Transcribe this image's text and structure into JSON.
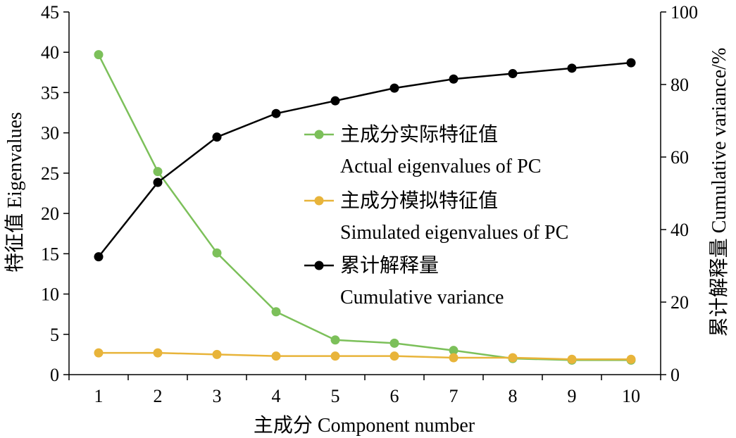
{
  "chart_data": {
    "type": "line",
    "x": [
      1,
      2,
      3,
      4,
      5,
      6,
      7,
      8,
      9,
      10
    ],
    "xlim": [
      0.5,
      10.5
    ],
    "xticks": [
      "1",
      "2",
      "3",
      "4",
      "5",
      "6",
      "7",
      "8",
      "9",
      "10"
    ],
    "xlabel": "主成分 Component  number",
    "ylabel_left": "特征值 Eigenvalues",
    "ylabel_right": "累计解释量 Cumulative variance/%",
    "ylim_left": [
      0,
      45
    ],
    "ylim_right": [
      0,
      100
    ],
    "yticks_left": [
      "0",
      "5",
      "10",
      "15",
      "20",
      "25",
      "30",
      "35",
      "40",
      "45"
    ],
    "yticks_right": [
      "0",
      "20",
      "40",
      "60",
      "80",
      "100"
    ],
    "grid": false,
    "legend_position": "center-right",
    "series": [
      {
        "key": "actual",
        "legend_zh": "主成分实际特征值",
        "legend_en": "Actual eigenvalues of PC",
        "axis": "left",
        "color": "#7cc05a",
        "values": [
          39.7,
          25.2,
          15.1,
          7.8,
          4.3,
          3.9,
          3.0,
          2.0,
          1.8,
          1.8
        ]
      },
      {
        "key": "simulated",
        "legend_zh": "主成分模拟特征值",
        "legend_en": "Simulated eigenvalues of PC",
        "axis": "left",
        "color": "#e8b43a",
        "values": [
          2.7,
          2.7,
          2.5,
          2.3,
          2.3,
          2.3,
          2.1,
          2.1,
          1.9,
          1.9
        ]
      },
      {
        "key": "cumulative",
        "legend_zh": "累计解释量",
        "legend_en": "Cumulative variance",
        "axis": "right",
        "color": "#000000",
        "values": [
          32.5,
          53.0,
          65.5,
          72.0,
          75.5,
          79.0,
          81.5,
          83.0,
          84.5,
          86.0
        ]
      }
    ]
  }
}
